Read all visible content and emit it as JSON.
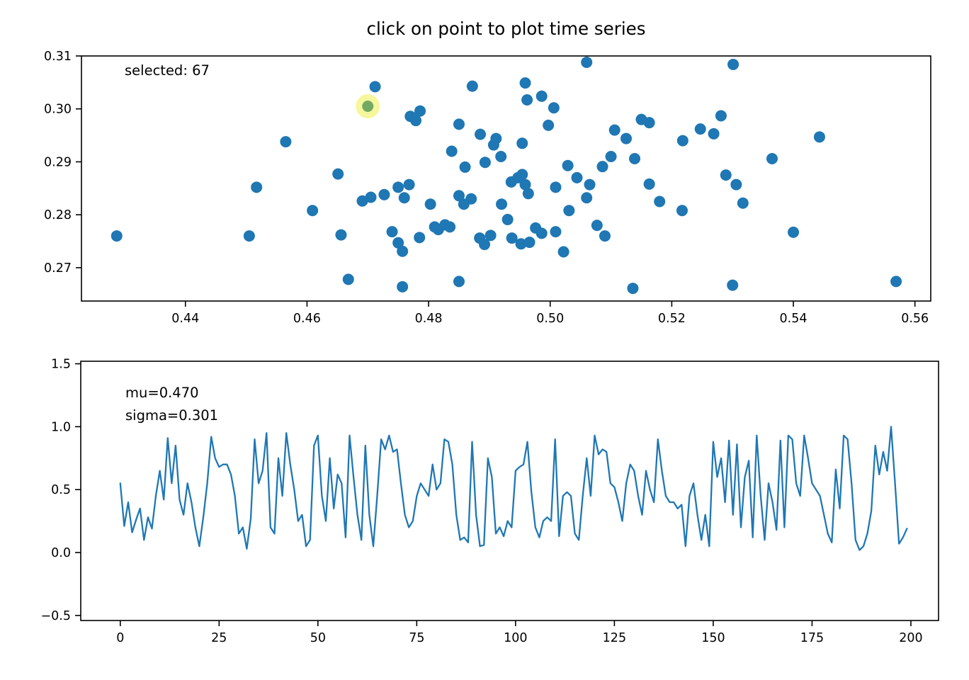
{
  "figure": {
    "title": "click on point to plot time series",
    "background": "#ffffff"
  },
  "scatter_panel": {
    "annotation": "selected: 67",
    "selected_index": 67,
    "marker_color": "#1f77b4",
    "selected_center_color": "#74a963",
    "selected_halo_color": "#f1f261",
    "xtick_labels": [
      "0.44",
      "0.46",
      "0.48",
      "0.50",
      "0.52",
      "0.54",
      "0.56"
    ],
    "ytick_labels": [
      "0.27",
      "0.28",
      "0.29",
      "0.30",
      "0.31"
    ]
  },
  "line_panel": {
    "annotation_mu": "mu=0.470",
    "annotation_sigma": "sigma=0.301",
    "line_color": "#1f77b4",
    "xtick_labels": [
      "0",
      "25",
      "50",
      "75",
      "100",
      "125",
      "150",
      "175",
      "200"
    ],
    "ytick_labels": [
      "−0.5",
      "0.0",
      "0.5",
      "1.0",
      "1.5"
    ]
  },
  "chart_data": [
    {
      "type": "scatter",
      "title": "click on point to plot time series",
      "xlabel": "",
      "ylabel": "",
      "xlim": [
        0.4229,
        0.5626
      ],
      "ylim": [
        0.2637,
        0.31
      ],
      "xticks": [
        0.44,
        0.46,
        0.48,
        0.5,
        0.52,
        0.54,
        0.56
      ],
      "yticks": [
        0.27,
        0.28,
        0.29,
        0.3,
        0.31
      ],
      "grid": false,
      "annotation": "selected: 67",
      "selected_point": [
        0.47,
        0.3005
      ],
      "points": [
        [
          0.4287,
          0.276
        ],
        [
          0.4505,
          0.276
        ],
        [
          0.4517,
          0.2852
        ],
        [
          0.4565,
          0.2938
        ],
        [
          0.4609,
          0.2808
        ],
        [
          0.4651,
          0.2877
        ],
        [
          0.4656,
          0.2762
        ],
        [
          0.4668,
          0.2678
        ],
        [
          0.4691,
          0.2826
        ],
        [
          0.4705,
          0.2833
        ],
        [
          0.4727,
          0.2838
        ],
        [
          0.4712,
          0.3042
        ],
        [
          0.475,
          0.2852
        ],
        [
          0.476,
          0.2832
        ],
        [
          0.4768,
          0.2857
        ],
        [
          0.474,
          0.2768
        ],
        [
          0.475,
          0.2747
        ],
        [
          0.4757,
          0.2731
        ],
        [
          0.4757,
          0.2664
        ],
        [
          0.477,
          0.2986
        ],
        [
          0.4779,
          0.2978
        ],
        [
          0.4786,
          0.2996
        ],
        [
          0.4785,
          0.2757
        ],
        [
          0.4803,
          0.282
        ],
        [
          0.481,
          0.2777
        ],
        [
          0.4816,
          0.2772
        ],
        [
          0.4827,
          0.2781
        ],
        [
          0.4835,
          0.2777
        ],
        [
          0.4838,
          0.292
        ],
        [
          0.485,
          0.2971
        ],
        [
          0.4872,
          0.3043
        ],
        [
          0.486,
          0.289
        ],
        [
          0.4885,
          0.2952
        ],
        [
          0.4893,
          0.2899
        ],
        [
          0.485,
          0.2836
        ],
        [
          0.4858,
          0.282
        ],
        [
          0.487,
          0.283
        ],
        [
          0.4884,
          0.2756
        ],
        [
          0.4892,
          0.2744
        ],
        [
          0.4902,
          0.2761
        ],
        [
          0.485,
          0.2674
        ],
        [
          0.492,
          0.282
        ],
        [
          0.493,
          0.2791
        ],
        [
          0.4936,
          0.2862
        ],
        [
          0.4947,
          0.287
        ],
        [
          0.4954,
          0.2876
        ],
        [
          0.4959,
          0.2857
        ],
        [
          0.4964,
          0.284
        ],
        [
          0.4937,
          0.2756
        ],
        [
          0.4952,
          0.2745
        ],
        [
          0.4966,
          0.2748
        ],
        [
          0.4976,
          0.2775
        ],
        [
          0.4986,
          0.2765
        ],
        [
          0.4959,
          0.3049
        ],
        [
          0.4962,
          0.3017
        ],
        [
          0.4986,
          0.3024
        ],
        [
          0.5006,
          0.3002
        ],
        [
          0.4997,
          0.2969
        ],
        [
          0.4954,
          0.2935
        ],
        [
          0.4911,
          0.2944
        ],
        [
          0.4919,
          0.291
        ],
        [
          0.4907,
          0.2932
        ],
        [
          0.506,
          0.3088
        ],
        [
          0.5301,
          0.3084
        ],
        [
          0.5106,
          0.296
        ],
        [
          0.5125,
          0.2944
        ],
        [
          0.515,
          0.298
        ],
        [
          0.5163,
          0.2974
        ],
        [
          0.5218,
          0.294
        ],
        [
          0.5247,
          0.2962
        ],
        [
          0.5269,
          0.2953
        ],
        [
          0.5086,
          0.2891
        ],
        [
          0.51,
          0.291
        ],
        [
          0.5139,
          0.2906
        ],
        [
          0.5029,
          0.2893
        ],
        [
          0.5044,
          0.287
        ],
        [
          0.5009,
          0.2852
        ],
        [
          0.5065,
          0.2857
        ],
        [
          0.5163,
          0.2858
        ],
        [
          0.518,
          0.2825
        ],
        [
          0.5217,
          0.2808
        ],
        [
          0.5289,
          0.2875
        ],
        [
          0.5306,
          0.2857
        ],
        [
          0.5317,
          0.2822
        ],
        [
          0.5031,
          0.2808
        ],
        [
          0.506,
          0.2832
        ],
        [
          0.5077,
          0.278
        ],
        [
          0.5009,
          0.2768
        ],
        [
          0.5022,
          0.273
        ],
        [
          0.509,
          0.276
        ],
        [
          0.5136,
          0.2661
        ],
        [
          0.53,
          0.2667
        ],
        [
          0.5365,
          0.2906
        ],
        [
          0.54,
          0.2767
        ],
        [
          0.5443,
          0.2947
        ],
        [
          0.5569,
          0.2674
        ],
        [
          0.5281,
          0.2987
        ]
      ]
    },
    {
      "type": "line",
      "title": "",
      "xlabel": "",
      "ylabel": "",
      "xlim": [
        -10,
        207
      ],
      "ylim": [
        -0.54,
        1.52
      ],
      "xticks": [
        0,
        25,
        50,
        75,
        100,
        125,
        150,
        175,
        200
      ],
      "yticks": [
        -0.5,
        0.0,
        0.5,
        1.0,
        1.5
      ],
      "grid": false,
      "annotations": [
        "mu=0.470",
        "sigma=0.301"
      ],
      "x_start": 0,
      "x_step": 1,
      "values": [
        0.55,
        0.21,
        0.4,
        0.16,
        0.26,
        0.35,
        0.1,
        0.28,
        0.19,
        0.45,
        0.65,
        0.42,
        0.91,
        0.55,
        0.85,
        0.42,
        0.3,
        0.55,
        0.4,
        0.2,
        0.05,
        0.28,
        0.55,
        0.92,
        0.75,
        0.68,
        0.7,
        0.7,
        0.62,
        0.45,
        0.15,
        0.2,
        0.03,
        0.27,
        0.9,
        0.55,
        0.65,
        0.95,
        0.2,
        0.15,
        0.75,
        0.45,
        0.95,
        0.7,
        0.5,
        0.25,
        0.3,
        0.05,
        0.1,
        0.85,
        0.93,
        0.45,
        0.25,
        0.75,
        0.35,
        0.62,
        0.55,
        0.12,
        0.93,
        0.6,
        0.3,
        0.1,
        0.85,
        0.3,
        0.05,
        0.45,
        0.9,
        0.82,
        0.93,
        0.8,
        0.82,
        0.55,
        0.3,
        0.2,
        0.25,
        0.45,
        0.55,
        0.5,
        0.45,
        0.7,
        0.5,
        0.55,
        0.9,
        0.88,
        0.7,
        0.3,
        0.1,
        0.12,
        0.08,
        0.88,
        0.3,
        0.05,
        0.06,
        0.75,
        0.6,
        0.15,
        0.2,
        0.13,
        0.25,
        0.2,
        0.65,
        0.68,
        0.7,
        0.88,
        0.48,
        0.2,
        0.12,
        0.25,
        0.28,
        0.25,
        0.9,
        0.13,
        0.45,
        0.48,
        0.45,
        0.15,
        0.1,
        0.45,
        0.75,
        0.45,
        0.93,
        0.78,
        0.82,
        0.8,
        0.55,
        0.52,
        0.4,
        0.25,
        0.55,
        0.7,
        0.65,
        0.45,
        0.3,
        0.65,
        0.5,
        0.4,
        0.9,
        0.65,
        0.45,
        0.4,
        0.4,
        0.35,
        0.38,
        0.05,
        0.45,
        0.55,
        0.3,
        0.1,
        0.3,
        0.05,
        0.88,
        0.6,
        0.75,
        0.4,
        0.89,
        0.3,
        0.86,
        0.2,
        0.6,
        0.73,
        0.12,
        0.93,
        0.45,
        0.1,
        0.55,
        0.4,
        0.18,
        0.89,
        0.2,
        0.93,
        0.9,
        0.55,
        0.45,
        0.93,
        0.75,
        0.55,
        0.5,
        0.45,
        0.3,
        0.15,
        0.08,
        0.66,
        0.35,
        0.93,
        0.9,
        0.55,
        0.1,
        0.02,
        0.05,
        0.15,
        0.33,
        0.85,
        0.62,
        0.8,
        0.65,
        1.0,
        0.55,
        0.07,
        0.12,
        0.19
      ]
    }
  ]
}
